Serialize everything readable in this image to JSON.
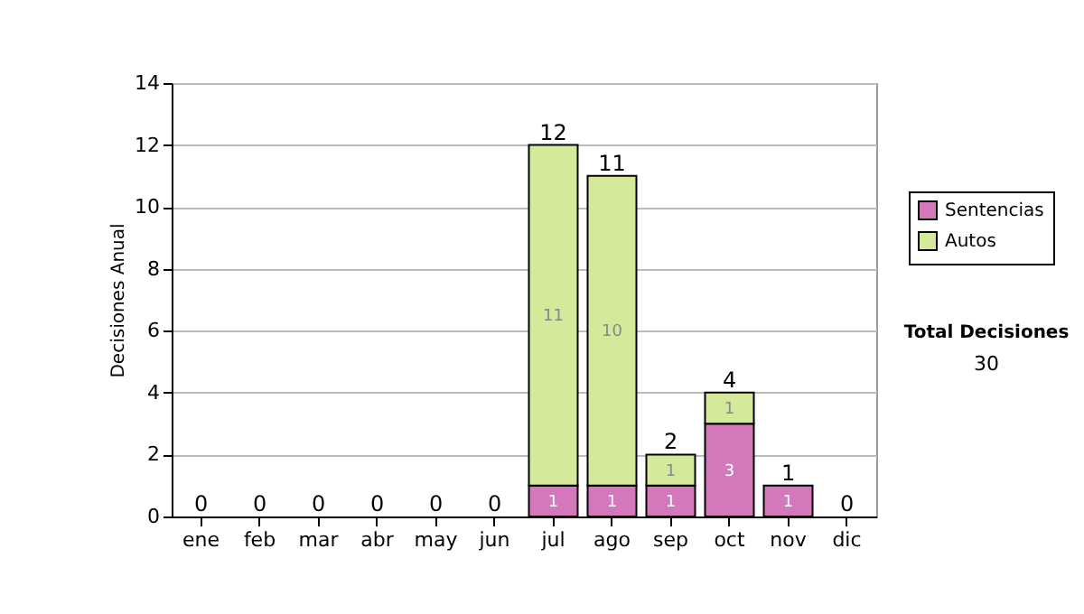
{
  "chart_data": {
    "type": "bar",
    "stacked": true,
    "ylabel": "Decisiones Anual",
    "categories": [
      "ene",
      "feb",
      "mar",
      "abr",
      "may",
      "jun",
      "jul",
      "ago",
      "sep",
      "oct",
      "nov",
      "dic"
    ],
    "series": [
      {
        "name": "Sentencias",
        "color": "#d477bb",
        "values": [
          0,
          0,
          0,
          0,
          0,
          0,
          1,
          1,
          1,
          3,
          1,
          0
        ],
        "value_labels": [
          null,
          null,
          null,
          null,
          null,
          null,
          "1",
          "1",
          "1",
          "3",
          "1",
          null
        ]
      },
      {
        "name": "Autos",
        "color": "#d4e99a",
        "values": [
          0,
          0,
          0,
          0,
          0,
          0,
          11,
          10,
          1,
          1,
          0,
          0
        ],
        "value_labels": [
          null,
          null,
          null,
          null,
          null,
          null,
          "11",
          "10",
          "1",
          "1",
          null,
          null
        ]
      }
    ],
    "totals": [
      "0",
      "0",
      "0",
      "0",
      "0",
      "0",
      "12",
      "11",
      "2",
      "4",
      "1",
      "0"
    ],
    "ylim": [
      0,
      14
    ],
    "yticks": [
      0,
      2,
      4,
      6,
      8,
      10,
      12,
      14
    ],
    "grid": "y",
    "legend": "right",
    "annotations": [
      "Total Decisiones",
      "30"
    ]
  }
}
